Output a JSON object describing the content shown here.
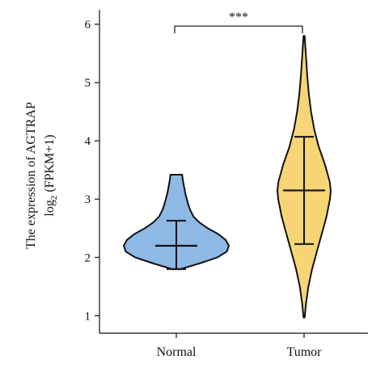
{
  "chart_data": {
    "type": "violin",
    "categories": [
      "Normal",
      "Tumor"
    ],
    "ylabel_line1": "The expression of AGTRAP",
    "ylabel_line2_prefix": "log",
    "ylabel_line2_sub": "2",
    "ylabel_line2_suffix": " (FPKM+1)",
    "ylim": [
      0.7,
      6.25
    ],
    "yticks": [
      1,
      2,
      3,
      4,
      5,
      6
    ],
    "significance": {
      "label": "***",
      "between": [
        "Normal",
        "Tumor"
      ],
      "y": 5.97
    },
    "series": [
      {
        "category": "Normal",
        "color": "#8db9e4",
        "min": 1.8,
        "max": 3.42,
        "median": 2.2,
        "q1": 1.8,
        "q3": 2.63,
        "profile": [
          [
            1.8,
            0.08
          ],
          [
            1.9,
            0.45
          ],
          [
            2.0,
            0.78
          ],
          [
            2.1,
            0.96
          ],
          [
            2.2,
            1.0
          ],
          [
            2.3,
            0.94
          ],
          [
            2.4,
            0.8
          ],
          [
            2.5,
            0.6
          ],
          [
            2.6,
            0.44
          ],
          [
            2.7,
            0.33
          ],
          [
            2.8,
            0.27
          ],
          [
            2.9,
            0.23
          ],
          [
            3.0,
            0.2
          ],
          [
            3.1,
            0.17
          ],
          [
            3.2,
            0.15
          ],
          [
            3.3,
            0.13
          ],
          [
            3.42,
            0.11
          ]
        ]
      },
      {
        "category": "Tumor",
        "color": "#f7d476",
        "min": 0.97,
        "max": 5.8,
        "median": 3.15,
        "q1": 2.23,
        "q3": 4.07,
        "profile": [
          [
            0.97,
            0.02
          ],
          [
            1.2,
            0.07
          ],
          [
            1.5,
            0.16
          ],
          [
            1.8,
            0.3
          ],
          [
            2.1,
            0.48
          ],
          [
            2.4,
            0.66
          ],
          [
            2.7,
            0.84
          ],
          [
            3.0,
            0.97
          ],
          [
            3.15,
            1.0
          ],
          [
            3.3,
            0.96
          ],
          [
            3.6,
            0.78
          ],
          [
            3.9,
            0.55
          ],
          [
            4.2,
            0.38
          ],
          [
            4.5,
            0.26
          ],
          [
            4.8,
            0.18
          ],
          [
            5.1,
            0.12
          ],
          [
            5.4,
            0.08
          ],
          [
            5.6,
            0.05
          ],
          [
            5.8,
            0.02
          ]
        ]
      }
    ]
  }
}
